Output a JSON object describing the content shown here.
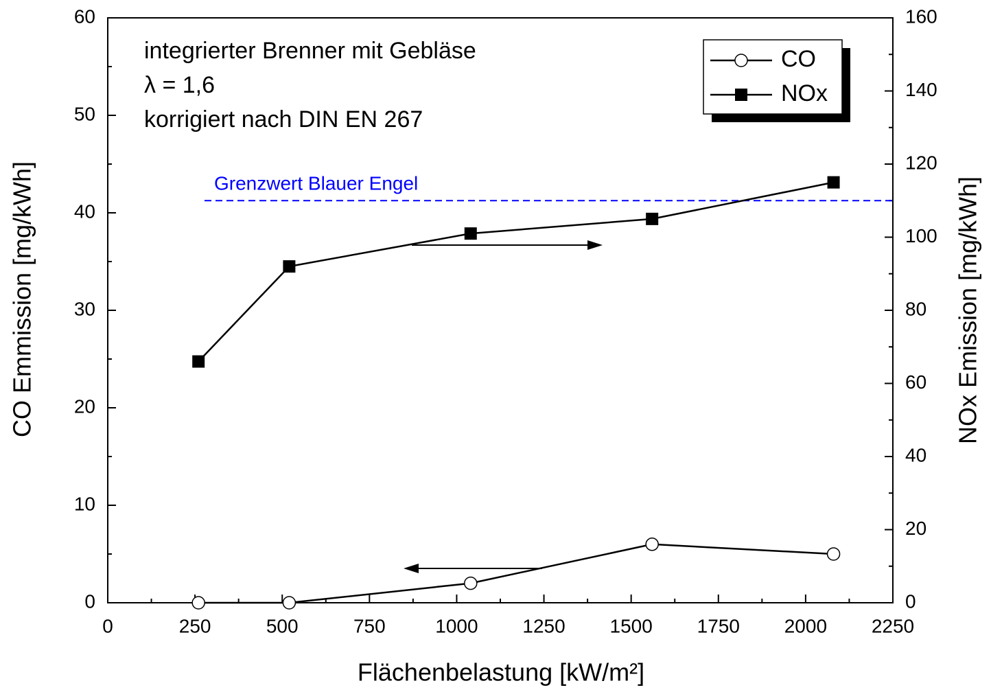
{
  "chart_data": {
    "type": "line",
    "xlabel": "Flächenbelastung [kW/m²]",
    "ylabel": "CO Emmission [mg/kWh]",
    "y2label": "NOx Emission [mg/kWh]",
    "x": [
      260,
      520,
      1040,
      1560,
      2080
    ],
    "series": [
      {
        "name": "CO",
        "color": "#000000",
        "marker": "circle",
        "axis": "y",
        "values": [
          0,
          0,
          2,
          6,
          5
        ]
      },
      {
        "name": "NOx",
        "color": "#000000",
        "marker": "square",
        "axis": "y2",
        "values": [
          66,
          92,
          101,
          105,
          115
        ]
      }
    ],
    "xlim": [
      0,
      2250
    ],
    "xticks": [
      0,
      250,
      500,
      750,
      1000,
      1250,
      1500,
      1750,
      2000,
      2250
    ],
    "xticks_minor": [
      125,
      375,
      625,
      875,
      1125,
      1375,
      1625,
      1875,
      2125
    ],
    "ylim": [
      0,
      60
    ],
    "yticks": [
      0,
      10,
      20,
      30,
      40,
      50,
      60
    ],
    "yticks_minor": [
      5,
      15,
      25,
      35,
      45,
      55
    ],
    "y2lim": [
      0,
      160
    ],
    "y2ticks": [
      0,
      20,
      40,
      60,
      80,
      100,
      120,
      140,
      160
    ],
    "y2ticks_minor": [
      10,
      30,
      50,
      70,
      90,
      110,
      130,
      150
    ],
    "reference_line": {
      "label": "Grenzwert Blauer Engel",
      "value": 110,
      "axis": "y2",
      "color": "#0000ff"
    },
    "annotations": [
      "integrierter Brenner mit Gebläse",
      "λ = 1,6",
      "korrigiert nach DIN EN 267"
    ],
    "legend": "upper right"
  }
}
